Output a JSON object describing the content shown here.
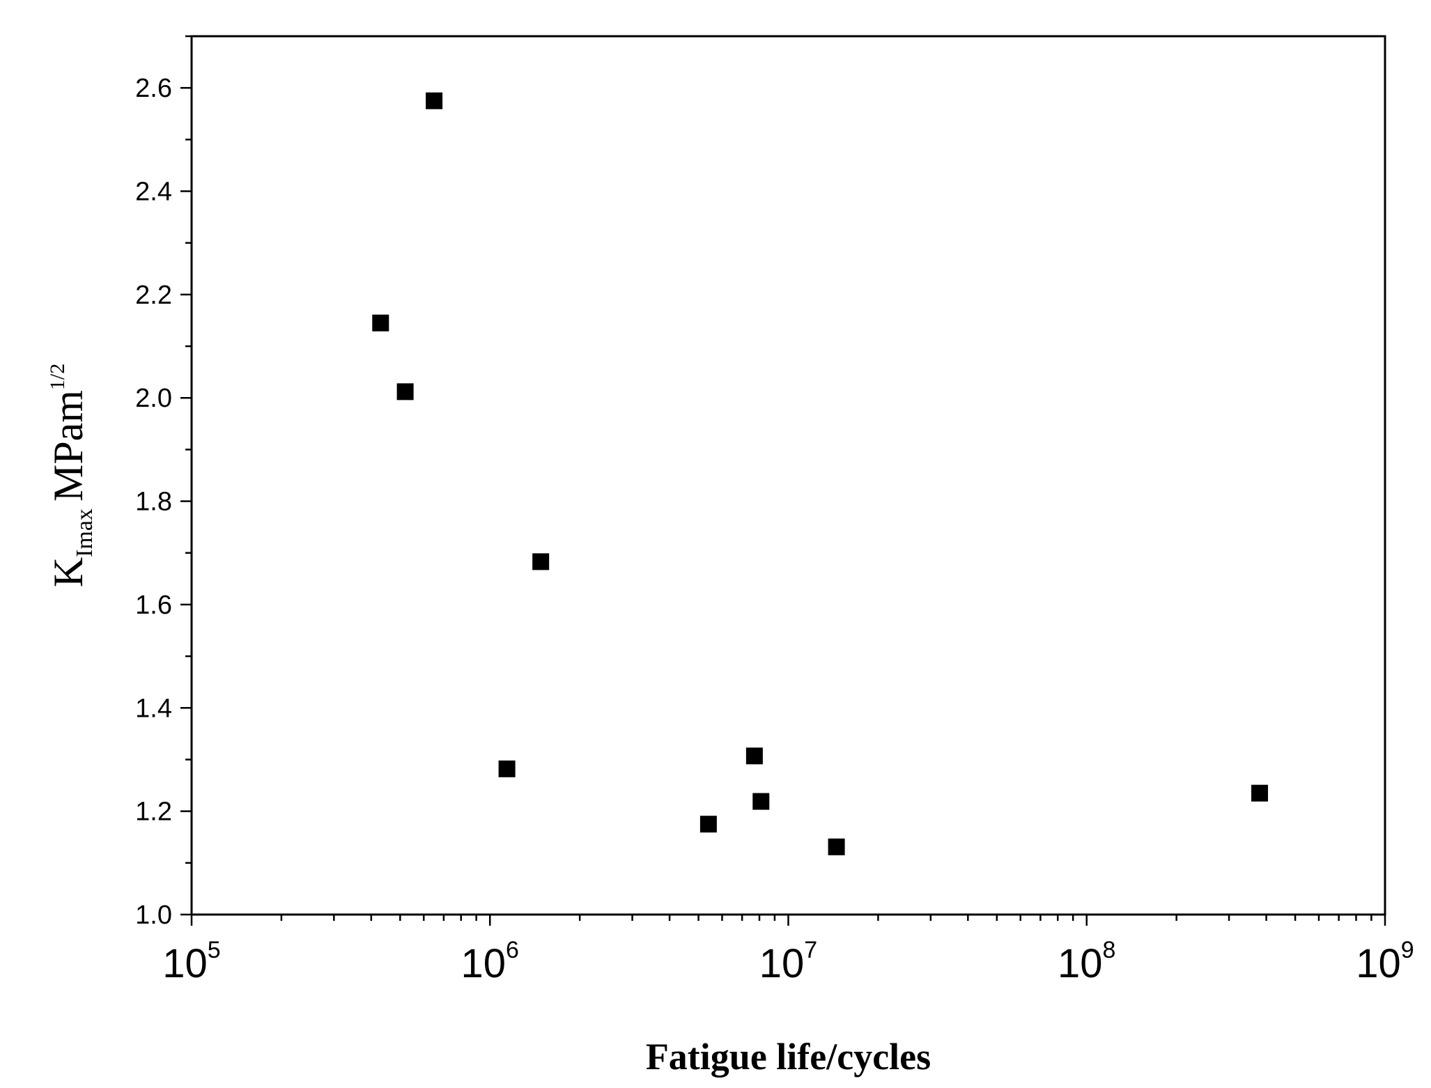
{
  "chart_data": {
    "type": "scatter",
    "title": "",
    "xlabel": "Fatigue life/cycles",
    "ylabel": {
      "main": "K",
      "subscript": "Imax",
      "unit": "MPam",
      "superscript": "1/2"
    },
    "x_scale": "log",
    "xlim": [
      100000,
      1000000000
    ],
    "ylim": [
      1.0,
      2.7
    ],
    "x_ticks": [
      {
        "base": "10",
        "exp": "5"
      },
      {
        "base": "10",
        "exp": "6"
      },
      {
        "base": "10",
        "exp": "7"
      },
      {
        "base": "10",
        "exp": "8"
      },
      {
        "base": "10",
        "exp": "9"
      }
    ],
    "y_ticks": [
      "1.0",
      "1.2",
      "1.4",
      "1.6",
      "1.8",
      "2.0",
      "2.2",
      "2.4",
      "2.6"
    ],
    "grid": false,
    "legend": "none",
    "marker": "square",
    "marker_color": "#000000",
    "points": [
      {
        "x": 430000,
        "y": 2.145
      },
      {
        "x": 520000,
        "y": 2.012
      },
      {
        "x": 650000,
        "y": 2.575
      },
      {
        "x": 1140000,
        "y": 1.282
      },
      {
        "x": 1480000,
        "y": 1.683
      },
      {
        "x": 5400000,
        "y": 1.175
      },
      {
        "x": 7700000,
        "y": 1.307
      },
      {
        "x": 8100000,
        "y": 1.219
      },
      {
        "x": 14500000,
        "y": 1.131
      },
      {
        "x": 380000000,
        "y": 1.235
      }
    ]
  }
}
